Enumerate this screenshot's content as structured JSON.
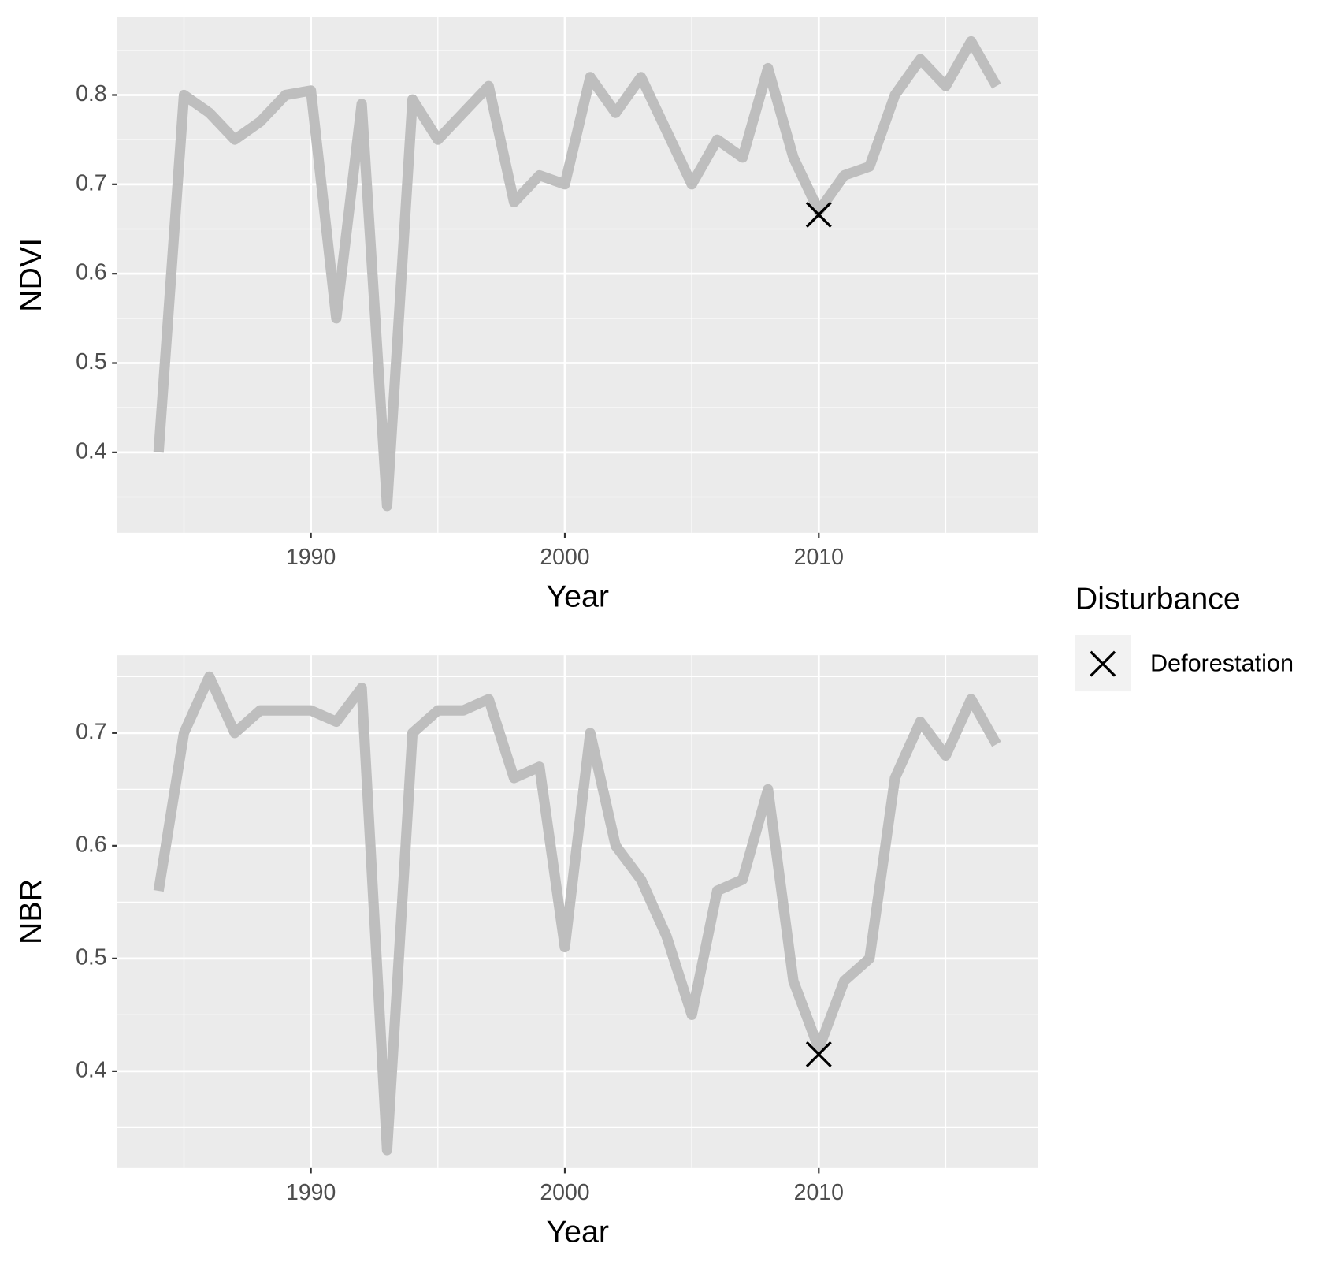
{
  "chart_data": [
    {
      "type": "line",
      "ylabel": "NDVI",
      "xlabel": "Year",
      "line_color": "#bebebe",
      "x": [
        1984,
        1985,
        1986,
        1987,
        1988,
        1989,
        1990,
        1991,
        1992,
        1993,
        1994,
        1995,
        1996,
        1997,
        1998,
        1999,
        2000,
        2001,
        2002,
        2003,
        2004,
        2005,
        2006,
        2007,
        2008,
        2009,
        2010,
        2011,
        2012,
        2013,
        2014,
        2015,
        2016,
        2017
      ],
      "values": [
        0.4,
        0.8,
        0.78,
        0.75,
        0.77,
        0.8,
        0.805,
        0.55,
        0.79,
        0.34,
        0.795,
        0.75,
        0.78,
        0.81,
        0.68,
        0.71,
        0.7,
        0.82,
        0.78,
        0.82,
        0.76,
        0.7,
        0.75,
        0.73,
        0.83,
        0.73,
        0.67,
        0.71,
        0.72,
        0.8,
        0.84,
        0.81,
        0.86,
        0.81
      ],
      "series": [
        {
          "name": "Deforestation",
          "color": "#000000",
          "x": [
            2010
          ],
          "values": [
            0.666
          ]
        }
      ],
      "xlim": [
        1982.37,
        2018.64
      ],
      "xticks": [
        1990,
        2000,
        2010
      ],
      "ylim": [
        0.31,
        0.887
      ],
      "yticks": [
        0.4,
        0.5,
        0.6,
        0.7,
        0.8
      ],
      "grid": true
    },
    {
      "type": "line",
      "ylabel": "NBR",
      "xlabel": "Year",
      "line_color": "#bebebe",
      "x": [
        1984,
        1985,
        1986,
        1987,
        1988,
        1989,
        1990,
        1991,
        1992,
        1993,
        1994,
        1995,
        1996,
        1997,
        1998,
        1999,
        2000,
        2001,
        2002,
        2003,
        2004,
        2005,
        2006,
        2007,
        2008,
        2009,
        2010,
        2011,
        2012,
        2013,
        2014,
        2015,
        2016,
        2017
      ],
      "values": [
        0.56,
        0.7,
        0.75,
        0.7,
        0.72,
        0.72,
        0.72,
        0.71,
        0.74,
        0.33,
        0.7,
        0.72,
        0.72,
        0.73,
        0.66,
        0.67,
        0.51,
        0.7,
        0.6,
        0.57,
        0.52,
        0.45,
        0.56,
        0.57,
        0.65,
        0.48,
        0.42,
        0.48,
        0.5,
        0.66,
        0.71,
        0.68,
        0.73,
        0.69
      ],
      "series": [
        {
          "name": "Deforestation",
          "color": "#000000",
          "x": [
            2010
          ],
          "values": [
            0.415
          ]
        }
      ],
      "xlim": [
        1982.37,
        2018.64
      ],
      "xticks": [
        1990,
        2000,
        2010
      ],
      "ylim": [
        0.314,
        0.769
      ],
      "yticks": [
        0.4,
        0.5,
        0.6,
        0.7
      ],
      "grid": true
    }
  ],
  "legend_title": "Disturbance"
}
